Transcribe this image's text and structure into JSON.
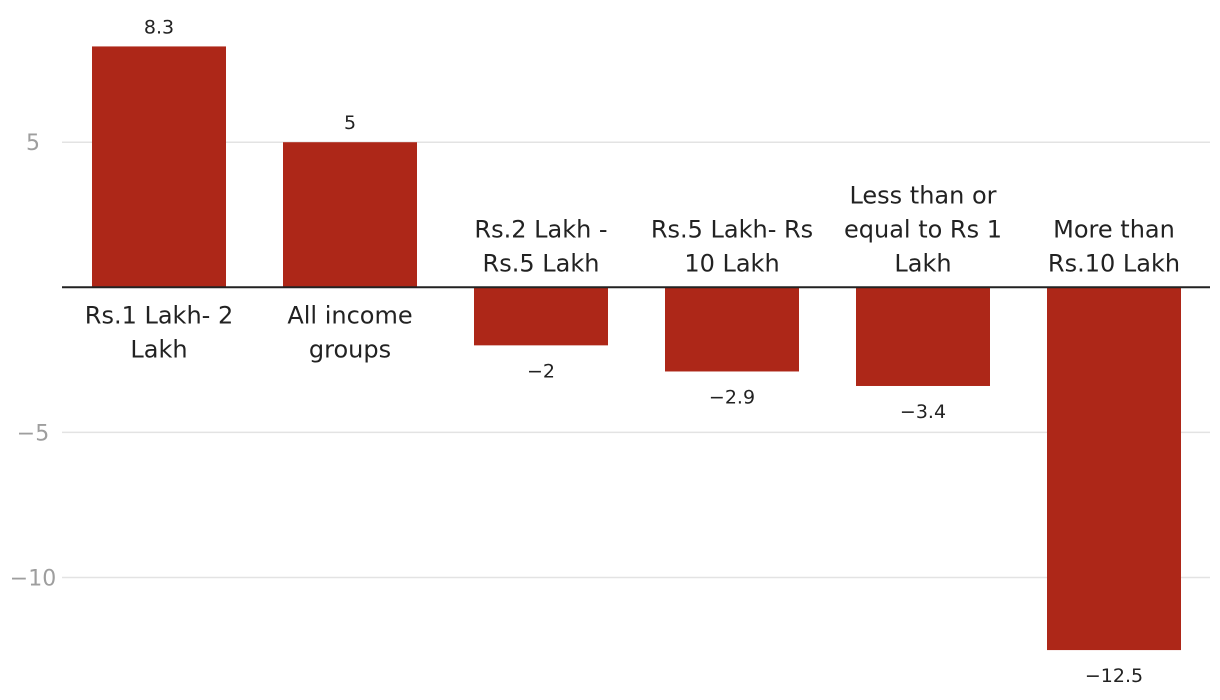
{
  "chart_data": {
    "type": "bar",
    "categories": [
      [
        "Rs.1 Lakh- 2",
        "Lakh"
      ],
      [
        "All income",
        "groups"
      ],
      [
        "Rs.2 Lakh -",
        "Rs.5 Lakh"
      ],
      [
        "Rs.5 Lakh- Rs",
        "10 Lakh"
      ],
      [
        "Less than or",
        "equal to Rs 1",
        "Lakh"
      ],
      [
        "More than",
        "Rs.10 Lakh"
      ]
    ],
    "values": [
      8.3,
      5,
      -2,
      -2.9,
      -3.4,
      -12.5
    ],
    "value_labels": [
      "8.3",
      "5",
      "−2",
      "−2.9",
      "−3.4",
      "−12.5"
    ],
    "ylim": [
      -13.6,
      9.9
    ],
    "yticks": [
      5,
      -5,
      -10
    ],
    "ytick_labels": [
      "5",
      "−5",
      "−10"
    ],
    "grid": true,
    "bar_color": "#ad2718"
  }
}
